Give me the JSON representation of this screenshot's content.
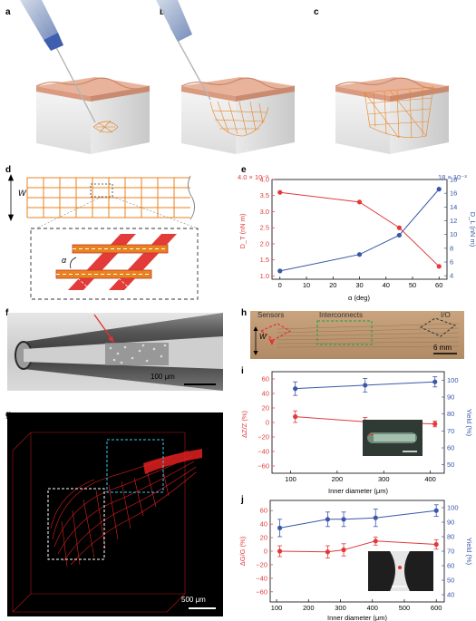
{
  "figure": {
    "panel_labels": {
      "a": "a",
      "b": "b",
      "c": "c",
      "d": "d",
      "e": "e",
      "f": "f",
      "g": "g",
      "h": "h",
      "i": "i",
      "j": "j"
    },
    "panel_d": {
      "w_label": "W",
      "alpha_label": "α"
    },
    "panel_f": {
      "scalebar": "100 μm"
    },
    "panel_g": {
      "scalebar": "500 μm"
    },
    "panel_h": {
      "sensors": "Sensors",
      "interconnects": "Interconnects",
      "io": "I/O",
      "w_label": "W",
      "scalebar": "6 mm"
    }
  },
  "colors": {
    "red": "#e03a3a",
    "blue": "#3a57a8",
    "orange": "#e8821e",
    "skin": "#e8b39a"
  },
  "chart_data": [
    {
      "id": "e",
      "type": "line",
      "xlabel": "α (deg)",
      "x": [
        0,
        30,
        45,
        60
      ],
      "x_ticks": [
        "0",
        "10",
        "20",
        "30",
        "40",
        "50",
        "60"
      ],
      "xlim": [
        -3,
        63
      ],
      "left_axis": {
        "label": "D_T (nN m)",
        "multiplier": "4.0 × 10⁻³",
        "ticks": [
          "1.0",
          "1.5",
          "2.0",
          "2.5",
          "3.0",
          "3.5",
          "4.0"
        ],
        "ylim": [
          0.9,
          4.0
        ]
      },
      "right_axis": {
        "label": "D_L (nN m)",
        "multiplier": "18 × 10⁻³",
        "ticks": [
          "4",
          "6",
          "8",
          "10",
          "12",
          "14",
          "16",
          "18"
        ],
        "ylim": [
          3.5,
          18
        ]
      },
      "series": [
        {
          "color": "#e03a3a",
          "axis": "left",
          "values": [
            3.6,
            3.3,
            2.5,
            1.3
          ]
        },
        {
          "color": "#3a57a8",
          "axis": "right",
          "values": [
            4.7,
            7.1,
            9.9,
            16.6
          ]
        }
      ]
    },
    {
      "id": "i",
      "type": "line",
      "xlabel": "Inner diameter (μm)",
      "x": [
        110,
        260,
        410
      ],
      "x_ticks": [
        "100",
        "200",
        "300",
        "400"
      ],
      "xlim": [
        60,
        430
      ],
      "left_axis": {
        "label": "ΔZ/Z (%)",
        "ticks": [
          "−60",
          "−40",
          "−20",
          "0",
          "20",
          "40",
          "60"
        ],
        "ylim": [
          -70,
          70
        ]
      },
      "right_axis": {
        "label": "Yield (%)",
        "ticks": [
          "50",
          "60",
          "70",
          "80",
          "90",
          "100"
        ],
        "ylim": [
          45,
          105
        ]
      },
      "series": [
        {
          "color": "#e03a3a",
          "axis": "left",
          "values": [
            8,
            1,
            -2
          ],
          "err": [
            8,
            6,
            4
          ]
        },
        {
          "color": "#3a57a8",
          "axis": "right",
          "values": [
            95,
            97,
            99
          ],
          "err": [
            4,
            4,
            3
          ]
        }
      ]
    },
    {
      "id": "j",
      "type": "line",
      "xlabel": "Inner diameter (μm)",
      "x": [
        110,
        260,
        310,
        410,
        600
      ],
      "x_ticks": [
        "100",
        "200",
        "300",
        "400",
        "500",
        "600"
      ],
      "xlim": [
        80,
        625
      ],
      "left_axis": {
        "label": "ΔG/G (%)",
        "ticks": [
          "−60",
          "−40",
          "−20",
          "0",
          "20",
          "40",
          "60"
        ],
        "ylim": [
          -75,
          75
        ]
      },
      "right_axis": {
        "label": "Yield (%)",
        "ticks": [
          "40",
          "50",
          "60",
          "70",
          "80",
          "90",
          "100"
        ],
        "ylim": [
          35,
          105
        ]
      },
      "series": [
        {
          "color": "#e03a3a",
          "axis": "left",
          "values": [
            0,
            -1,
            2,
            15,
            10
          ],
          "err": [
            8,
            9,
            9,
            6,
            7
          ]
        },
        {
          "color": "#3a57a8",
          "axis": "right",
          "values": [
            86,
            92,
            92,
            93,
            98
          ],
          "err": [
            6,
            5,
            5,
            6,
            4
          ]
        }
      ]
    }
  ]
}
